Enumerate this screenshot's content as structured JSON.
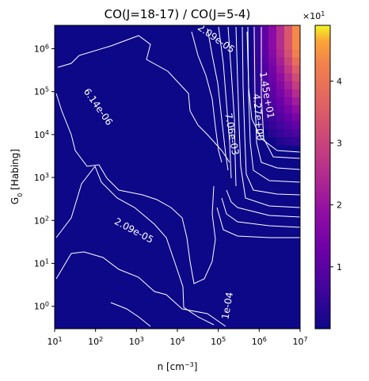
{
  "chart_data": {
    "type": "heatmap",
    "title": "CO(J=18-17) / CO(J=5-4)",
    "xlabel": "n [cm$^{-3}$]",
    "xlabel_main": "n [cm",
    "xlabel_sup": "−3",
    "xlabel_close": "]",
    "ylabel": "G$_0$ [Habing]",
    "ylabel_main": "G",
    "ylabel_sub": "0",
    "ylabel_rest": " [Habing]",
    "xscale": "log",
    "yscale": "log",
    "xlim": [
      10,
      10000000
    ],
    "ylim": [
      0.3,
      3500000
    ],
    "x_ticks": [
      {
        "value": 10,
        "base": "10",
        "exp": "1"
      },
      {
        "value": 100,
        "base": "10",
        "exp": "2"
      },
      {
        "value": 1000,
        "base": "10",
        "exp": "3"
      },
      {
        "value": 10000,
        "base": "10",
        "exp": "4"
      },
      {
        "value": 100000,
        "base": "10",
        "exp": "5"
      },
      {
        "value": 1000000,
        "base": "10",
        "exp": "6"
      },
      {
        "value": 10000000,
        "base": "10",
        "exp": "7"
      }
    ],
    "y_ticks": [
      {
        "value": 1,
        "base": "10",
        "exp": "0"
      },
      {
        "value": 10,
        "base": "10",
        "exp": "1"
      },
      {
        "value": 100,
        "base": "10",
        "exp": "2"
      },
      {
        "value": 1000,
        "base": "10",
        "exp": "3"
      },
      {
        "value": 10000,
        "base": "10",
        "exp": "4"
      },
      {
        "value": 100000,
        "base": "10",
        "exp": "5"
      },
      {
        "value": 1000000,
        "base": "10",
        "exp": "6"
      }
    ],
    "colormap": "plasma",
    "colorbar": {
      "range": [
        0.0,
        4.9
      ],
      "ticks": [
        "1",
        "2",
        "3",
        "4"
      ],
      "tick_values": [
        1,
        2,
        3,
        4
      ],
      "multiplier_base": "×10",
      "multiplier_exp": "1"
    },
    "contour_labels": [
      {
        "text": "2.09e-05",
        "x": 80000,
        "y": 1500000,
        "rotation": 35
      },
      {
        "text": "6.14e-06",
        "x": 100,
        "y": 40000,
        "rotation": 55
      },
      {
        "text": "2.09e-05",
        "x": 800,
        "y": 50,
        "rotation": 28
      },
      {
        "text": "1.45e+01",
        "x": 1300000,
        "y": 80000,
        "rotation": 80
      },
      {
        "text": "4.27e+00",
        "x": 800000,
        "y": 25000,
        "rotation": 85
      },
      {
        "text": "7.06e-03",
        "x": 180000,
        "y": 10000,
        "rotation": 80
      },
      {
        "text": "1e-04",
        "x": 200000,
        "y": 1,
        "rotation": -80
      }
    ]
  }
}
